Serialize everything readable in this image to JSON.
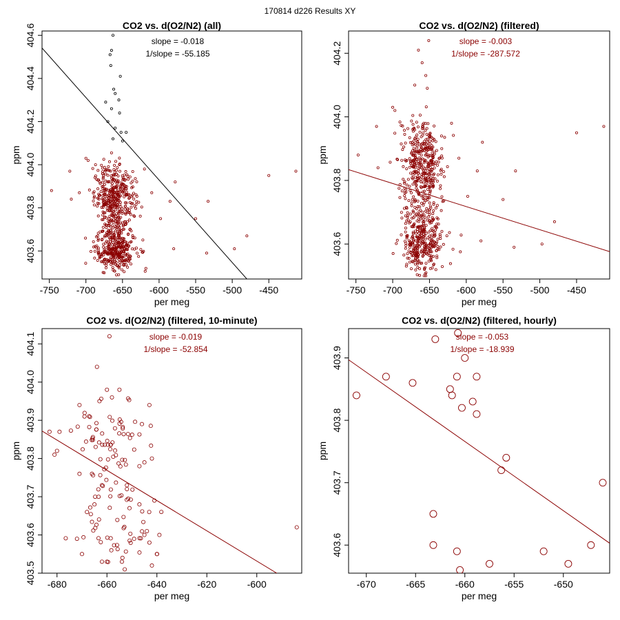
{
  "figure_title": "170814   d226   Results XY",
  "colors": {
    "axis": "#000000",
    "accent": "#8b0000",
    "black_points": "#000000"
  },
  "chart_data": [
    {
      "type": "scatter",
      "title": "CO2 vs. d(O2/N2) (all)",
      "xlabel": "per meg",
      "ylabel": "ppm",
      "xlim": [
        -760,
        -405
      ],
      "ylim": [
        403.47,
        404.62
      ],
      "xticks": [
        -750,
        -700,
        -650,
        -600,
        -550,
        -500,
        -450
      ],
      "yticks": [
        403.6,
        403.8,
        404.0,
        404.2,
        404.4,
        404.6
      ],
      "ytick_labels": [
        "403.6",
        "403.8",
        "404.0",
        "404.2",
        "404.4",
        "404.6"
      ],
      "annotations": [
        "slope = -0.018",
        "1/slope = -55.185"
      ],
      "annotation_color": "#000000",
      "line_color": "#000000",
      "fit_line": {
        "x": [
          -760,
          -480
        ],
        "y": [
          404.541,
          403.47
        ]
      },
      "point_size": "small",
      "clusters": [
        {
          "x_center": -660,
          "x_spread": 14,
          "y_center": 403.85,
          "y_spread": 0.055,
          "n": 320,
          "color": "#8b0000"
        },
        {
          "x_center": -660,
          "x_spread": 14,
          "y_center": 403.6,
          "y_spread": 0.045,
          "n": 300,
          "color": "#8b0000"
        },
        {
          "x_center": -660,
          "x_spread": 13,
          "y_center": 403.71,
          "y_spread": 0.035,
          "n": 80,
          "color": "#8b0000"
        },
        {
          "x_center": -665,
          "x_spread": 12,
          "y_center": 403.96,
          "y_spread": 0.03,
          "n": 40,
          "color": "#8b0000"
        }
      ],
      "points": [
        {
          "x": -663,
          "y": 404.6,
          "color": "#000000"
        },
        {
          "x": -665,
          "y": 404.53,
          "color": "#000000"
        },
        {
          "x": -667,
          "y": 404.51,
          "color": "#000000"
        },
        {
          "x": -666,
          "y": 404.46,
          "color": "#000000"
        },
        {
          "x": -653,
          "y": 404.41,
          "color": "#000000"
        },
        {
          "x": -662,
          "y": 404.35,
          "color": "#000000"
        },
        {
          "x": -660,
          "y": 404.33,
          "color": "#000000"
        },
        {
          "x": -655,
          "y": 404.3,
          "color": "#000000"
        },
        {
          "x": -673,
          "y": 404.29,
          "color": "#000000"
        },
        {
          "x": -665,
          "y": 404.26,
          "color": "#000000"
        },
        {
          "x": -654,
          "y": 404.24,
          "color": "#000000"
        },
        {
          "x": -670,
          "y": 404.2,
          "color": "#000000"
        },
        {
          "x": -660,
          "y": 404.17,
          "color": "#000000"
        },
        {
          "x": -652,
          "y": 404.15,
          "color": "#000000"
        },
        {
          "x": -645,
          "y": 404.15,
          "color": "#000000"
        },
        {
          "x": -663,
          "y": 404.12,
          "color": "#000000"
        },
        {
          "x": -650,
          "y": 404.11,
          "color": "#000000"
        },
        {
          "x": -747,
          "y": 403.88,
          "color": "#8b0000"
        },
        {
          "x": -722,
          "y": 403.97,
          "color": "#8b0000"
        },
        {
          "x": -720,
          "y": 403.84,
          "color": "#8b0000"
        },
        {
          "x": -700,
          "y": 404.03,
          "color": "#8b0000"
        },
        {
          "x": -697,
          "y": 404.02,
          "color": "#8b0000"
        },
        {
          "x": -620,
          "y": 403.98,
          "color": "#8b0000"
        },
        {
          "x": -610,
          "y": 403.87,
          "color": "#8b0000"
        },
        {
          "x": -598,
          "y": 403.75,
          "color": "#8b0000"
        },
        {
          "x": -585,
          "y": 403.83,
          "color": "#8b0000"
        },
        {
          "x": -580,
          "y": 403.61,
          "color": "#8b0000"
        },
        {
          "x": -578,
          "y": 403.92,
          "color": "#8b0000"
        },
        {
          "x": -550,
          "y": 403.75,
          "color": "#8b0000"
        },
        {
          "x": -535,
          "y": 403.59,
          "color": "#8b0000"
        },
        {
          "x": -533,
          "y": 403.83,
          "color": "#8b0000"
        },
        {
          "x": -497,
          "y": 403.61,
          "color": "#8b0000"
        },
        {
          "x": -480,
          "y": 403.67,
          "color": "#8b0000"
        },
        {
          "x": -450,
          "y": 403.95,
          "color": "#8b0000"
        },
        {
          "x": -413,
          "y": 403.97,
          "color": "#8b0000"
        }
      ]
    },
    {
      "type": "scatter",
      "title": "CO2 vs. d(O2/N2) (filtered)",
      "xlabel": "per meg",
      "ylabel": "ppm",
      "xlim": [
        -760,
        -405
      ],
      "ylim": [
        403.49,
        404.27
      ],
      "xticks": [
        -750,
        -700,
        -650,
        -600,
        -550,
        -500,
        -450
      ],
      "yticks": [
        403.6,
        403.8,
        404.0,
        404.2
      ],
      "ytick_labels": [
        "403.6",
        "403.8",
        "404.0",
        "404.2"
      ],
      "annotations": [
        "slope = -0.003",
        "1/slope = -287.572"
      ],
      "annotation_color": "#8b0000",
      "line_color": "#8b0000",
      "fit_line": {
        "x": [
          -760,
          -405
        ],
        "y": [
          403.834,
          403.576
        ]
      },
      "point_size": "small",
      "clusters": [
        {
          "x_center": -660,
          "x_spread": 14,
          "y_center": 403.85,
          "y_spread": 0.055,
          "n": 320,
          "color": "#8b0000"
        },
        {
          "x_center": -660,
          "x_spread": 14,
          "y_center": 403.6,
          "y_spread": 0.045,
          "n": 300,
          "color": "#8b0000"
        },
        {
          "x_center": -660,
          "x_spread": 13,
          "y_center": 403.71,
          "y_spread": 0.035,
          "n": 80,
          "color": "#8b0000"
        },
        {
          "x_center": -665,
          "x_spread": 12,
          "y_center": 403.95,
          "y_spread": 0.03,
          "n": 40,
          "color": "#8b0000"
        }
      ],
      "points": [
        {
          "x": -651,
          "y": 404.24,
          "color": "#8b0000"
        },
        {
          "x": -665,
          "y": 404.21,
          "color": "#8b0000"
        },
        {
          "x": -660,
          "y": 404.17,
          "color": "#8b0000"
        },
        {
          "x": -655,
          "y": 404.13,
          "color": "#8b0000"
        },
        {
          "x": -670,
          "y": 404.1,
          "color": "#8b0000"
        },
        {
          "x": -653,
          "y": 404.09,
          "color": "#8b0000"
        },
        {
          "x": -747,
          "y": 403.88,
          "color": "#8b0000"
        },
        {
          "x": -722,
          "y": 403.97,
          "color": "#8b0000"
        },
        {
          "x": -720,
          "y": 403.84,
          "color": "#8b0000"
        },
        {
          "x": -700,
          "y": 404.03,
          "color": "#8b0000"
        },
        {
          "x": -697,
          "y": 404.02,
          "color": "#8b0000"
        },
        {
          "x": -620,
          "y": 403.98,
          "color": "#8b0000"
        },
        {
          "x": -610,
          "y": 403.87,
          "color": "#8b0000"
        },
        {
          "x": -598,
          "y": 403.75,
          "color": "#8b0000"
        },
        {
          "x": -585,
          "y": 403.83,
          "color": "#8b0000"
        },
        {
          "x": -580,
          "y": 403.61,
          "color": "#8b0000"
        },
        {
          "x": -578,
          "y": 403.92,
          "color": "#8b0000"
        },
        {
          "x": -550,
          "y": 403.74,
          "color": "#8b0000"
        },
        {
          "x": -535,
          "y": 403.59,
          "color": "#8b0000"
        },
        {
          "x": -533,
          "y": 403.83,
          "color": "#8b0000"
        },
        {
          "x": -497,
          "y": 403.6,
          "color": "#8b0000"
        },
        {
          "x": -480,
          "y": 403.67,
          "color": "#8b0000"
        },
        {
          "x": -450,
          "y": 403.95,
          "color": "#8b0000"
        },
        {
          "x": -413,
          "y": 403.97,
          "color": "#8b0000"
        }
      ]
    },
    {
      "type": "scatter",
      "title": "CO2 vs. d(O2/N2) (filtered, 10-minute)",
      "xlabel": "per meg",
      "ylabel": "ppm",
      "xlim": [
        -686,
        -582
      ],
      "ylim": [
        403.5,
        404.14
      ],
      "xticks": [
        -680,
        -660,
        -640,
        -620,
        -600
      ],
      "yticks": [
        403.5,
        403.6,
        403.7,
        403.8,
        403.9,
        404.0,
        404.1
      ],
      "ytick_labels": [
        "403.5",
        "403.6",
        "403.7",
        "403.8",
        "403.9",
        "404.0",
        "404.1"
      ],
      "annotations": [
        "slope = -0.019",
        "1/slope = -52.854"
      ],
      "annotation_color": "#8b0000",
      "line_color": "#8b0000",
      "fit_line": {
        "x": [
          -686,
          -592
        ],
        "y": [
          403.872,
          403.5
        ]
      },
      "point_size": "medium",
      "clusters": [
        {
          "x_center": -658,
          "x_spread": 7,
          "y_center": 403.86,
          "y_spread": 0.05,
          "n": 60,
          "color": "#8b0000"
        },
        {
          "x_center": -655,
          "x_spread": 8,
          "y_center": 403.59,
          "y_spread": 0.035,
          "n": 35,
          "color": "#8b0000"
        },
        {
          "x_center": -656,
          "x_spread": 7,
          "y_center": 403.7,
          "y_spread": 0.04,
          "n": 20,
          "color": "#8b0000"
        }
      ],
      "points": [
        {
          "x": -659,
          "y": 404.12,
          "color": "#8b0000"
        },
        {
          "x": -664,
          "y": 404.04,
          "color": "#8b0000"
        },
        {
          "x": -660,
          "y": 403.98,
          "color": "#8b0000"
        },
        {
          "x": -655,
          "y": 403.98,
          "color": "#8b0000"
        },
        {
          "x": -658,
          "y": 403.96,
          "color": "#8b0000"
        },
        {
          "x": -663,
          "y": 403.95,
          "color": "#8b0000"
        },
        {
          "x": -671,
          "y": 403.94,
          "color": "#8b0000"
        },
        {
          "x": -643,
          "y": 403.94,
          "color": "#8b0000"
        },
        {
          "x": -683,
          "y": 403.87,
          "color": "#8b0000"
        },
        {
          "x": -681,
          "y": 403.81,
          "color": "#8b0000"
        },
        {
          "x": -679,
          "y": 403.87,
          "color": "#8b0000"
        },
        {
          "x": -680,
          "y": 403.82,
          "color": "#8b0000"
        },
        {
          "x": -669,
          "y": 403.91,
          "color": "#8b0000"
        },
        {
          "x": -646,
          "y": 403.89,
          "color": "#8b0000"
        },
        {
          "x": -647,
          "y": 403.78,
          "color": "#8b0000"
        },
        {
          "x": -645,
          "y": 403.79,
          "color": "#8b0000"
        },
        {
          "x": -642,
          "y": 403.8,
          "color": "#8b0000"
        },
        {
          "x": -671,
          "y": 403.76,
          "color": "#8b0000"
        },
        {
          "x": -666,
          "y": 403.76,
          "color": "#8b0000"
        },
        {
          "x": -641,
          "y": 403.69,
          "color": "#8b0000"
        },
        {
          "x": -647,
          "y": 403.68,
          "color": "#8b0000"
        },
        {
          "x": -652,
          "y": 403.73,
          "color": "#8b0000"
        },
        {
          "x": -662,
          "y": 403.73,
          "color": "#8b0000"
        },
        {
          "x": -668,
          "y": 403.66,
          "color": "#8b0000"
        },
        {
          "x": -665,
          "y": 403.68,
          "color": "#8b0000"
        },
        {
          "x": -652,
          "y": 403.72,
          "color": "#8b0000"
        },
        {
          "x": -644,
          "y": 403.61,
          "color": "#8b0000"
        },
        {
          "x": -645,
          "y": 403.6,
          "color": "#8b0000"
        },
        {
          "x": -643,
          "y": 403.58,
          "color": "#8b0000"
        },
        {
          "x": -639,
          "y": 403.6,
          "color": "#8b0000"
        },
        {
          "x": -640,
          "y": 403.55,
          "color": "#8b0000"
        },
        {
          "x": -642,
          "y": 403.52,
          "color": "#8b0000"
        },
        {
          "x": -662,
          "y": 403.53,
          "color": "#8b0000"
        },
        {
          "x": -660,
          "y": 403.53,
          "color": "#8b0000"
        },
        {
          "x": -654,
          "y": 403.53,
          "color": "#8b0000"
        },
        {
          "x": -670,
          "y": 403.55,
          "color": "#8b0000"
        },
        {
          "x": -672,
          "y": 403.59,
          "color": "#8b0000"
        },
        {
          "x": -584,
          "y": 403.62,
          "color": "#8b0000"
        }
      ]
    },
    {
      "type": "scatter",
      "title": "CO2 vs. d(O2/N2) (filtered, hourly)",
      "xlabel": "per meg",
      "ylabel": "ppm",
      "xlim": [
        -671.8,
        -645.3
      ],
      "ylim": [
        403.555,
        403.947
      ],
      "xticks": [
        -670,
        -665,
        -660,
        -655,
        -650
      ],
      "yticks": [
        403.6,
        403.7,
        403.8,
        403.9
      ],
      "ytick_labels": [
        "403.6",
        "403.7",
        "403.8",
        "403.9"
      ],
      "annotations": [
        "slope = -0.053",
        "1/slope = -18.939"
      ],
      "annotation_color": "#8b0000",
      "line_color": "#8b0000",
      "fit_line": {
        "x": [
          -671.8,
          -645.3
        ],
        "y": [
          403.897,
          403.603
        ]
      },
      "point_size": "large",
      "clusters": [],
      "points": [
        {
          "x": -671,
          "y": 403.84,
          "color": "#8b0000"
        },
        {
          "x": -668,
          "y": 403.87,
          "color": "#8b0000"
        },
        {
          "x": -665.3,
          "y": 403.86,
          "color": "#8b0000"
        },
        {
          "x": -663,
          "y": 403.93,
          "color": "#8b0000"
        },
        {
          "x": -660.7,
          "y": 403.94,
          "color": "#8b0000"
        },
        {
          "x": -660,
          "y": 403.9,
          "color": "#8b0000"
        },
        {
          "x": -660.8,
          "y": 403.87,
          "color": "#8b0000"
        },
        {
          "x": -658.8,
          "y": 403.87,
          "color": "#8b0000"
        },
        {
          "x": -661.5,
          "y": 403.85,
          "color": "#8b0000"
        },
        {
          "x": -661.3,
          "y": 403.84,
          "color": "#8b0000"
        },
        {
          "x": -659.2,
          "y": 403.83,
          "color": "#8b0000"
        },
        {
          "x": -660.3,
          "y": 403.82,
          "color": "#8b0000"
        },
        {
          "x": -658.8,
          "y": 403.81,
          "color": "#8b0000"
        },
        {
          "x": -655.8,
          "y": 403.74,
          "color": "#8b0000"
        },
        {
          "x": -656.3,
          "y": 403.72,
          "color": "#8b0000"
        },
        {
          "x": -663.2,
          "y": 403.65,
          "color": "#8b0000"
        },
        {
          "x": -663.2,
          "y": 403.6,
          "color": "#8b0000"
        },
        {
          "x": -660.8,
          "y": 403.59,
          "color": "#8b0000"
        },
        {
          "x": -660.5,
          "y": 403.56,
          "color": "#8b0000"
        },
        {
          "x": -657.5,
          "y": 403.57,
          "color": "#8b0000"
        },
        {
          "x": -652,
          "y": 403.59,
          "color": "#8b0000"
        },
        {
          "x": -649.5,
          "y": 403.57,
          "color": "#8b0000"
        },
        {
          "x": -647.2,
          "y": 403.6,
          "color": "#8b0000"
        },
        {
          "x": -646,
          "y": 403.7,
          "color": "#8b0000"
        }
      ]
    }
  ]
}
